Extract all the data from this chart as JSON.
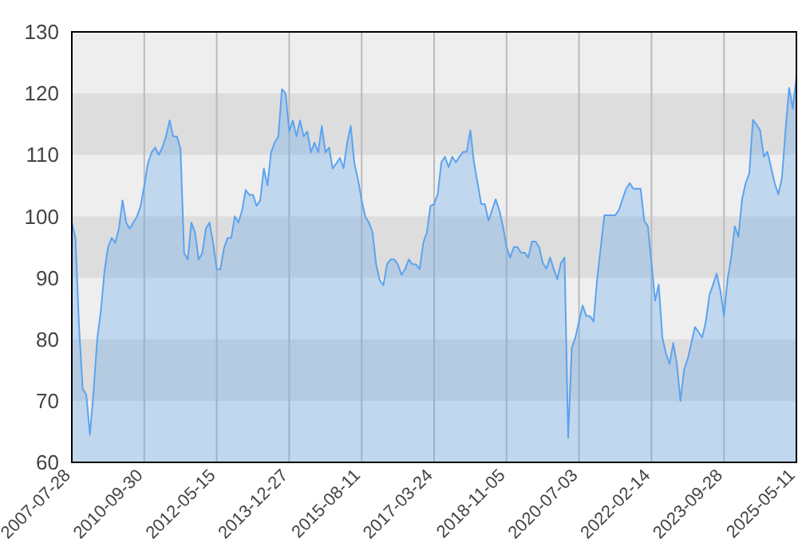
{
  "chart_data": {
    "type": "area",
    "categories": [
      "2007-07-28",
      null,
      null,
      null,
      null,
      null,
      null,
      null,
      null,
      null,
      null,
      null,
      null,
      null,
      null,
      null,
      null,
      null,
      null,
      null,
      "2010-09-30",
      null,
      null,
      null,
      null,
      null,
      null,
      null,
      null,
      null,
      null,
      null,
      null,
      null,
      null,
      null,
      null,
      null,
      null,
      null,
      "2012-05-15",
      null,
      null,
      null,
      null,
      null,
      null,
      null,
      null,
      null,
      null,
      null,
      null,
      null,
      null,
      null,
      null,
      null,
      null,
      null,
      "2013-12-27",
      null,
      null,
      null,
      null,
      null,
      null,
      null,
      null,
      null,
      null,
      null,
      null,
      null,
      null,
      null,
      null,
      null,
      null,
      null,
      "2015-08-11",
      null,
      null,
      null,
      null,
      null,
      null,
      null,
      null,
      null,
      null,
      null,
      null,
      null,
      null,
      null,
      null,
      null,
      null,
      null,
      "2017-03-24",
      null,
      null,
      null,
      null,
      null,
      null,
      null,
      null,
      null,
      null,
      null,
      null,
      null,
      null,
      null,
      null,
      null,
      null,
      null,
      "2018-11-05",
      null,
      null,
      null,
      null,
      null,
      null,
      null,
      null,
      null,
      null,
      null,
      null,
      null,
      null,
      null,
      null,
      null,
      null,
      null,
      "2020-07-03",
      null,
      null,
      null,
      null,
      null,
      null,
      null,
      null,
      null,
      null,
      null,
      null,
      null,
      null,
      null,
      null,
      null,
      null,
      null,
      "2022-02-14",
      null,
      null,
      null,
      null,
      null,
      null,
      null,
      null,
      null,
      null,
      null,
      null,
      null,
      null,
      null,
      null,
      null,
      null,
      null,
      "2023-09-28",
      null,
      null,
      null,
      null,
      null,
      null,
      null,
      null,
      null,
      null,
      null,
      null,
      null,
      null,
      null,
      null,
      null,
      null,
      null,
      "2025-05-11"
    ],
    "series": [
      {
        "color": "#5ba3f0",
        "values": [
          99,
          96.5,
          82,
          72,
          71,
          64.5,
          71.5,
          80,
          84.5,
          91,
          95,
          96.5,
          95.7,
          98,
          102.6,
          99,
          98,
          99,
          100,
          101.7,
          105,
          108.6,
          110.4,
          111.2,
          110,
          111.2,
          113,
          115.6,
          113,
          113,
          111,
          94,
          93,
          99,
          97.4,
          93,
          94,
          98,
          99,
          95.7,
          91.4,
          91.4,
          94.8,
          96.5,
          96.5,
          100,
          99,
          101,
          104.3,
          103.5,
          103.5,
          101.7,
          102.6,
          107.8,
          105,
          110.4,
          112,
          113,
          120.7,
          120,
          113.8,
          115.6,
          113,
          115.6,
          113,
          113.8,
          110.4,
          112,
          110.4,
          114.7,
          110.4,
          111.2,
          107.8,
          108.6,
          109.5,
          107.8,
          112,
          114.7,
          108.6,
          106,
          102.6,
          100,
          99,
          97.4,
          92.2,
          89.6,
          88.8,
          92.2,
          93,
          93,
          92.2,
          90.5,
          91.4,
          93,
          92.2,
          92.2,
          91.4,
          95.7,
          97.4,
          101.7,
          102,
          103.6,
          108.8,
          109.7,
          108,
          109.7,
          108.8,
          109.7,
          110.5,
          110.5,
          114,
          108.8,
          105.4,
          102,
          102,
          99.3,
          101,
          102.8,
          101,
          98.4,
          95,
          93.3,
          95,
          95,
          94.1,
          94.1,
          93.3,
          95.9,
          95.9,
          95,
          92.4,
          91.5,
          93.3,
          91.5,
          89.8,
          92.4,
          93.3,
          64,
          78.6,
          80.3,
          82.9,
          85.5,
          83.8,
          83.8,
          82.9,
          89.8,
          95,
          100.2,
          100.2,
          100.2,
          100.2,
          101,
          102.8,
          104.5,
          105.4,
          104.5,
          104.5,
          104.5,
          99.3,
          98.4,
          92.4,
          86.3,
          88.9,
          80.3,
          77.7,
          76,
          79.4,
          76,
          70,
          75.1,
          76.8,
          79.4,
          82,
          81.2,
          80.3,
          82.9,
          87.2,
          88.9,
          90.7,
          88,
          83.8,
          89.8,
          93.3,
          98.4,
          96.7,
          102.8,
          105.4,
          107,
          115.7,
          114.9,
          114,
          109.7,
          110.5,
          108,
          105.4,
          103.6,
          106.2,
          114,
          120.9,
          117.5,
          122.6
        ]
      }
    ],
    "ylim": [
      60,
      130
    ],
    "yticks": [
      60,
      70,
      80,
      90,
      100,
      110,
      120,
      130
    ],
    "grid": "x",
    "bands": [
      {
        "axis": "y",
        "from": 70,
        "to": 80,
        "color": "#dddddd"
      },
      {
        "axis": "y",
        "from": 90,
        "to": 100,
        "color": "#dddddd"
      },
      {
        "axis": "y",
        "from": 110,
        "to": 120,
        "color": "#dddddd"
      }
    ]
  }
}
